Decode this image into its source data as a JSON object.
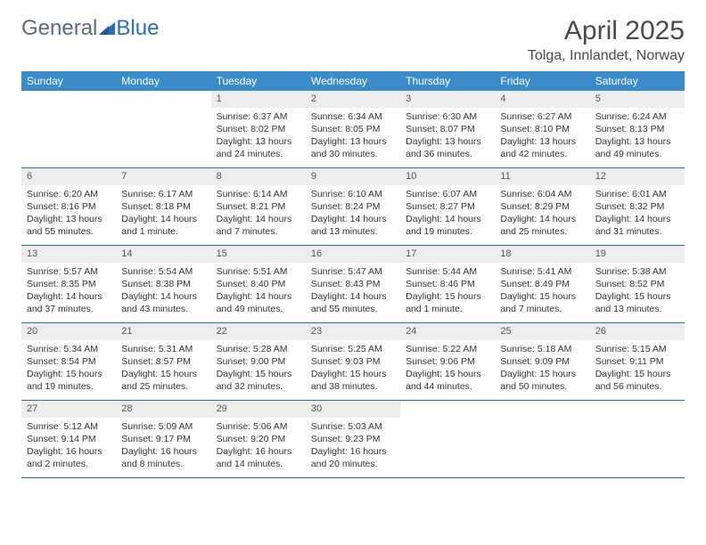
{
  "brand": {
    "part1": "General",
    "part2": "Blue"
  },
  "title": "April 2025",
  "location": "Tolga, Innlandet, Norway",
  "colors": {
    "header_bg": "#3b8bc9",
    "header_text": "#ffffff",
    "border": "#2e6fb4",
    "daynum_bg": "#ededed",
    "logo_gray": "#5a6a7a",
    "logo_blue": "#2e6fb4"
  },
  "weekdays": [
    "Sunday",
    "Monday",
    "Tuesday",
    "Wednesday",
    "Thursday",
    "Friday",
    "Saturday"
  ],
  "weeks": [
    [
      {
        "empty": true
      },
      {
        "empty": true
      },
      {
        "num": "1",
        "sunrise": "Sunrise: 6:37 AM",
        "sunset": "Sunset: 8:02 PM",
        "daylight": "Daylight: 13 hours and 24 minutes."
      },
      {
        "num": "2",
        "sunrise": "Sunrise: 6:34 AM",
        "sunset": "Sunset: 8:05 PM",
        "daylight": "Daylight: 13 hours and 30 minutes."
      },
      {
        "num": "3",
        "sunrise": "Sunrise: 6:30 AM",
        "sunset": "Sunset: 8:07 PM",
        "daylight": "Daylight: 13 hours and 36 minutes."
      },
      {
        "num": "4",
        "sunrise": "Sunrise: 6:27 AM",
        "sunset": "Sunset: 8:10 PM",
        "daylight": "Daylight: 13 hours and 42 minutes."
      },
      {
        "num": "5",
        "sunrise": "Sunrise: 6:24 AM",
        "sunset": "Sunset: 8:13 PM",
        "daylight": "Daylight: 13 hours and 49 minutes."
      }
    ],
    [
      {
        "num": "6",
        "sunrise": "Sunrise: 6:20 AM",
        "sunset": "Sunset: 8:16 PM",
        "daylight": "Daylight: 13 hours and 55 minutes."
      },
      {
        "num": "7",
        "sunrise": "Sunrise: 6:17 AM",
        "sunset": "Sunset: 8:18 PM",
        "daylight": "Daylight: 14 hours and 1 minute."
      },
      {
        "num": "8",
        "sunrise": "Sunrise: 6:14 AM",
        "sunset": "Sunset: 8:21 PM",
        "daylight": "Daylight: 14 hours and 7 minutes."
      },
      {
        "num": "9",
        "sunrise": "Sunrise: 6:10 AM",
        "sunset": "Sunset: 8:24 PM",
        "daylight": "Daylight: 14 hours and 13 minutes."
      },
      {
        "num": "10",
        "sunrise": "Sunrise: 6:07 AM",
        "sunset": "Sunset: 8:27 PM",
        "daylight": "Daylight: 14 hours and 19 minutes."
      },
      {
        "num": "11",
        "sunrise": "Sunrise: 6:04 AM",
        "sunset": "Sunset: 8:29 PM",
        "daylight": "Daylight: 14 hours and 25 minutes."
      },
      {
        "num": "12",
        "sunrise": "Sunrise: 6:01 AM",
        "sunset": "Sunset: 8:32 PM",
        "daylight": "Daylight: 14 hours and 31 minutes."
      }
    ],
    [
      {
        "num": "13",
        "sunrise": "Sunrise: 5:57 AM",
        "sunset": "Sunset: 8:35 PM",
        "daylight": "Daylight: 14 hours and 37 minutes."
      },
      {
        "num": "14",
        "sunrise": "Sunrise: 5:54 AM",
        "sunset": "Sunset: 8:38 PM",
        "daylight": "Daylight: 14 hours and 43 minutes."
      },
      {
        "num": "15",
        "sunrise": "Sunrise: 5:51 AM",
        "sunset": "Sunset: 8:40 PM",
        "daylight": "Daylight: 14 hours and 49 minutes."
      },
      {
        "num": "16",
        "sunrise": "Sunrise: 5:47 AM",
        "sunset": "Sunset: 8:43 PM",
        "daylight": "Daylight: 14 hours and 55 minutes."
      },
      {
        "num": "17",
        "sunrise": "Sunrise: 5:44 AM",
        "sunset": "Sunset: 8:46 PM",
        "daylight": "Daylight: 15 hours and 1 minute."
      },
      {
        "num": "18",
        "sunrise": "Sunrise: 5:41 AM",
        "sunset": "Sunset: 8:49 PM",
        "daylight": "Daylight: 15 hours and 7 minutes."
      },
      {
        "num": "19",
        "sunrise": "Sunrise: 5:38 AM",
        "sunset": "Sunset: 8:52 PM",
        "daylight": "Daylight: 15 hours and 13 minutes."
      }
    ],
    [
      {
        "num": "20",
        "sunrise": "Sunrise: 5:34 AM",
        "sunset": "Sunset: 8:54 PM",
        "daylight": "Daylight: 15 hours and 19 minutes."
      },
      {
        "num": "21",
        "sunrise": "Sunrise: 5:31 AM",
        "sunset": "Sunset: 8:57 PM",
        "daylight": "Daylight: 15 hours and 25 minutes."
      },
      {
        "num": "22",
        "sunrise": "Sunrise: 5:28 AM",
        "sunset": "Sunset: 9:00 PM",
        "daylight": "Daylight: 15 hours and 32 minutes."
      },
      {
        "num": "23",
        "sunrise": "Sunrise: 5:25 AM",
        "sunset": "Sunset: 9:03 PM",
        "daylight": "Daylight: 15 hours and 38 minutes."
      },
      {
        "num": "24",
        "sunrise": "Sunrise: 5:22 AM",
        "sunset": "Sunset: 9:06 PM",
        "daylight": "Daylight: 15 hours and 44 minutes."
      },
      {
        "num": "25",
        "sunrise": "Sunrise: 5:18 AM",
        "sunset": "Sunset: 9:09 PM",
        "daylight": "Daylight: 15 hours and 50 minutes."
      },
      {
        "num": "26",
        "sunrise": "Sunrise: 5:15 AM",
        "sunset": "Sunset: 9:11 PM",
        "daylight": "Daylight: 15 hours and 56 minutes."
      }
    ],
    [
      {
        "num": "27",
        "sunrise": "Sunrise: 5:12 AM",
        "sunset": "Sunset: 9:14 PM",
        "daylight": "Daylight: 16 hours and 2 minutes."
      },
      {
        "num": "28",
        "sunrise": "Sunrise: 5:09 AM",
        "sunset": "Sunset: 9:17 PM",
        "daylight": "Daylight: 16 hours and 8 minutes."
      },
      {
        "num": "29",
        "sunrise": "Sunrise: 5:06 AM",
        "sunset": "Sunset: 9:20 PM",
        "daylight": "Daylight: 16 hours and 14 minutes."
      },
      {
        "num": "30",
        "sunrise": "Sunrise: 5:03 AM",
        "sunset": "Sunset: 9:23 PM",
        "daylight": "Daylight: 16 hours and 20 minutes."
      },
      {
        "empty": true
      },
      {
        "empty": true
      },
      {
        "empty": true
      }
    ]
  ]
}
